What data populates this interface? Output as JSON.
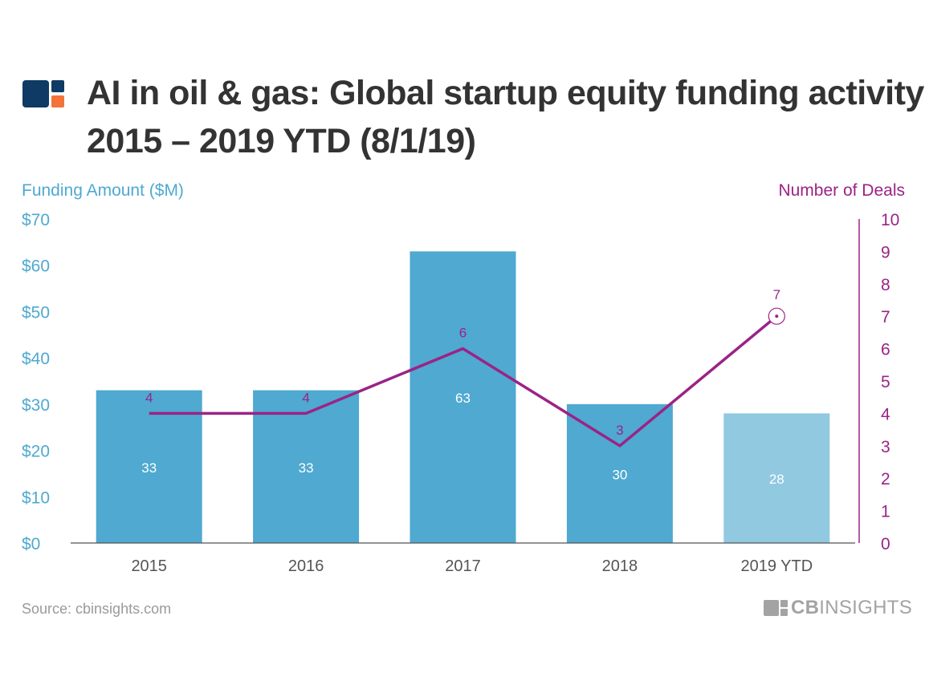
{
  "header": {
    "title_line1": "AI in oil & gas: Global startup equity funding activity",
    "title_line2": "2015 – 2019 YTD (8/1/19)"
  },
  "footer": {
    "source": "Source: cbinsights.com",
    "brand_bold": "CB",
    "brand_rest": "INSIGHTS"
  },
  "colors": {
    "bar": "#4fa9d0",
    "bar_ytd": "#90c9e0",
    "line": "#9b2387",
    "left_axis": "#4fa9d0",
    "right_axis": "#9b2387",
    "tick_text": "#555555",
    "logo_dark": "#0e3a64",
    "logo_orange": "#f37338"
  },
  "icons": {
    "header_logo": "cb-logo-icon",
    "footer_logo": "cb-logo-icon"
  },
  "chart_data": {
    "type": "bar",
    "categories": [
      "2015",
      "2016",
      "2017",
      "2018",
      "2019 YTD"
    ],
    "series": [
      {
        "type": "bar",
        "axis": "left",
        "values": [
          33,
          33,
          63,
          30,
          28
        ],
        "labels": [
          "33",
          "33",
          "63",
          "30",
          "28"
        ]
      },
      {
        "type": "line",
        "axis": "right",
        "values": [
          4,
          4,
          6,
          3,
          7
        ],
        "labels": [
          "4",
          "4",
          "6",
          "3",
          "7"
        ]
      }
    ],
    "ylabel_left": "Funding Amount ($M)",
    "ylabel_right": "Number of Deals",
    "ylim_left": [
      0,
      70
    ],
    "ylim_right": [
      0,
      10
    ],
    "yticks_left": [
      "$0",
      "$10",
      "$20",
      "$30",
      "$40",
      "$50",
      "$60",
      "$70"
    ],
    "yticks_right": [
      "0",
      "1",
      "2",
      "3",
      "4",
      "5",
      "6",
      "7",
      "8",
      "9",
      "10"
    ],
    "grid": false,
    "legend": "none"
  }
}
